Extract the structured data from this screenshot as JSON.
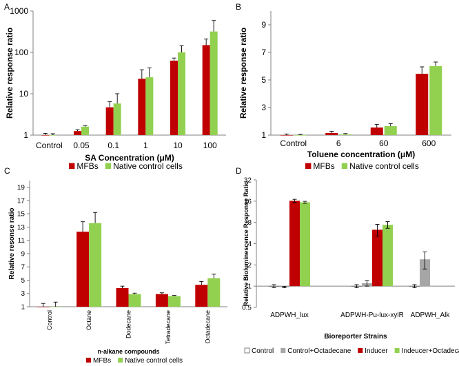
{
  "colors": {
    "mfb": "#C00000",
    "native": "#92D050",
    "control": "#FFFFFF",
    "control_octadecane": "#A6A6A6",
    "axis": "#808080",
    "err": "#000000"
  },
  "chart_data": [
    {
      "panel": "A",
      "type": "bar",
      "yscale": "log10",
      "ylim": [
        1,
        1000
      ],
      "title": "",
      "xlabel": "SA Concentration (μM)",
      "ylabel": "Relative response ratio",
      "categories": [
        "Control",
        "0.05",
        "0.1",
        "1",
        "10",
        "100"
      ],
      "yticks": [
        1,
        10,
        100,
        1000
      ],
      "ytick_labels": [
        "1",
        "10",
        "100",
        "1000"
      ],
      "series": [
        {
          "name": "MFBs",
          "color": "#C00000",
          "values": [
            1.0,
            1.25,
            4.7,
            23,
            63,
            150
          ],
          "errors": [
            0.1,
            0.1,
            1.7,
            15,
            10,
            60
          ]
        },
        {
          "name": "Native control cells",
          "color": "#92D050",
          "values": [
            1.0,
            1.6,
            5.8,
            25,
            100,
            320
          ],
          "errors": [
            0.08,
            0.1,
            4.2,
            17,
            45,
            270
          ]
        }
      ],
      "legend": [
        "MFBs",
        "Native control cells"
      ]
    },
    {
      "panel": "B",
      "type": "bar",
      "yscale": "linear",
      "ylim": [
        1,
        10
      ],
      "title": "",
      "xlabel": "Toluene concentration (μM)",
      "ylabel": "Relative response ratio",
      "categories": [
        "Control",
        "6",
        "60",
        "600"
      ],
      "yticks": [
        1,
        3,
        5,
        7,
        9
      ],
      "ytick_labels": [
        "1",
        "3",
        "5",
        "7",
        "9"
      ],
      "series": [
        {
          "name": "MFBs",
          "color": "#C00000",
          "values": [
            1.0,
            1.15,
            1.55,
            5.45
          ],
          "errors": [
            0.08,
            0.12,
            0.22,
            0.5
          ]
        },
        {
          "name": "Native control cells",
          "color": "#92D050",
          "values": [
            1.0,
            1.05,
            1.65,
            6.0
          ],
          "errors": [
            0.05,
            0.06,
            0.18,
            0.3
          ]
        }
      ],
      "legend": [
        "MFBs",
        "Native control cells"
      ]
    },
    {
      "panel": "C",
      "type": "bar",
      "yscale": "linear",
      "ylim": [
        1,
        20
      ],
      "title": "",
      "xlabel": "n-alkane compounds",
      "ylabel": "Relative resonse ratio",
      "categories": [
        "Control",
        "Octane",
        "Dodecane",
        "Tetradecane",
        "Octadecane"
      ],
      "yticks": [
        1,
        3,
        5,
        7,
        9,
        11,
        13,
        15,
        17,
        19
      ],
      "ytick_labels": [
        "1",
        "3",
        "5",
        "7",
        "9",
        "11",
        "13",
        "15",
        "17",
        "19"
      ],
      "series": [
        {
          "name": "MFBs",
          "color": "#C00000",
          "values": [
            1.0,
            12.3,
            3.8,
            2.9,
            4.3
          ],
          "errors": [
            0.5,
            1.5,
            0.3,
            0.2,
            0.5
          ]
        },
        {
          "name": "Native control cells",
          "color": "#92D050",
          "values": [
            1.0,
            13.6,
            2.9,
            2.6,
            5.3
          ],
          "errors": [
            0.7,
            1.6,
            0.15,
            0.1,
            0.6
          ]
        }
      ],
      "legend": [
        "MFBs",
        "Native control cells"
      ]
    },
    {
      "panel": "D",
      "type": "bar",
      "yscale": "log2",
      "ylim": [
        0.5,
        32
      ],
      "title": "",
      "xlabel": "Bioreporter Strains",
      "ylabel": "Relative Bioluminescence Response Ratio",
      "categories": [
        "ADPWH_lux",
        "ADPWH-Pu-lux-xylR",
        "ADPWH_Alk"
      ],
      "yticks": [
        0.5,
        1,
        2,
        4,
        8,
        16,
        32
      ],
      "ytick_labels": [
        "0.5",
        "1",
        "2",
        "4",
        "8",
        "16",
        "32"
      ],
      "series": [
        {
          "name": "Control",
          "color": "#FFFFFF",
          "values": [
            1.0,
            1.0,
            1.0
          ],
          "errors": [
            0.05,
            0.05,
            0.05
          ]
        },
        {
          "name": "Control+Octadecane",
          "color": "#A6A6A6",
          "values": [
            0.97,
            1.1,
            2.4
          ],
          "errors": [
            0.02,
            0.1,
            0.65
          ]
        },
        {
          "name": "Inducer",
          "color": "#C00000",
          "values": [
            16.2,
            6.3,
            null
          ],
          "errors": [
            0.8,
            1.2,
            null
          ]
        },
        {
          "name": "Indeucer+Octadecane",
          "color": "#92D050",
          "values": [
            15.4,
            7.4,
            null
          ],
          "errors": [
            0.5,
            0.8,
            null
          ]
        }
      ],
      "legend": [
        "Control",
        "Control+Octadecane",
        "Inducer",
        "Indeucer+Octadecane"
      ]
    }
  ]
}
